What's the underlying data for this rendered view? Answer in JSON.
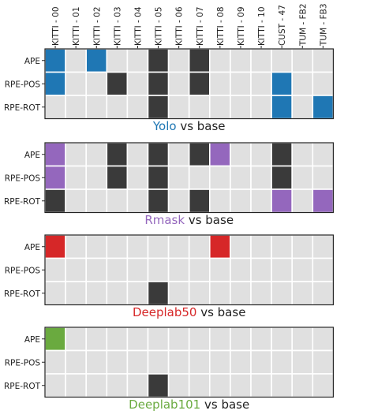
{
  "colors": {
    "empty": "#e0e0e0",
    "dark": "#3a3a3a",
    "blue": "#1f77b4",
    "purple": "#9467bd",
    "red": "#d62728",
    "green": "#6aaa3f",
    "frame": "#222222",
    "text": "#222222"
  },
  "chart_data": [
    {
      "type": "heatmap",
      "title": {
        "method": "Yolo",
        "method_color": "#1f77b4",
        "suffix": "vs base"
      },
      "columns": [
        "KITTI - 00",
        "KITTI - 01",
        "KITTI - 02",
        "KITTI - 03",
        "KITTI - 04",
        "KITTI - 05",
        "KITTI - 06",
        "KITTI - 07",
        "KITTI - 08",
        "KITTI - 09",
        "KITTI - 10",
        "CUST - 47",
        "TUM - FB2",
        "TUM - FB3"
      ],
      "rows": [
        "APE",
        "RPE-POS",
        "RPE-ROT"
      ],
      "row_labels_shown": [
        "APE",
        "RPE-POS",
        "RPE-ROT"
      ],
      "legend_meaning": {
        "0": "empty",
        "1": "method color",
        "2": "dark"
      },
      "cells": [
        [
          1,
          0,
          1,
          0,
          0,
          2,
          0,
          2,
          0,
          0,
          0,
          0,
          0,
          0
        ],
        [
          1,
          0,
          0,
          2,
          0,
          2,
          0,
          2,
          0,
          0,
          0,
          1,
          0,
          0
        ],
        [
          0,
          0,
          0,
          0,
          0,
          2,
          0,
          0,
          0,
          0,
          0,
          1,
          0,
          1
        ]
      ]
    },
    {
      "type": "heatmap",
      "title": {
        "method": "Rmask",
        "method_color": "#9467bd",
        "suffix": "vs base"
      },
      "columns": [
        "KITTI - 00",
        "KITTI - 01",
        "KITTI - 02",
        "KITTI - 03",
        "KITTI - 04",
        "KITTI - 05",
        "KITTI - 06",
        "KITTI - 07",
        "KITTI - 08",
        "KITTI - 09",
        "KITTI - 10",
        "CUST - 47",
        "TUM - FB2",
        "TUM - FB3"
      ],
      "rows": [
        "APE",
        "RPE-POS",
        "RPE-ROT"
      ],
      "row_labels_shown": [
        "APE",
        "RPE-POS",
        "RPE-ROT"
      ],
      "cells": [
        [
          1,
          0,
          0,
          2,
          0,
          2,
          0,
          2,
          1,
          0,
          0,
          2,
          0,
          0
        ],
        [
          1,
          0,
          0,
          2,
          0,
          2,
          0,
          0,
          0,
          0,
          0,
          2,
          0,
          0
        ],
        [
          2,
          0,
          0,
          0,
          0,
          2,
          0,
          2,
          0,
          0,
          0,
          1,
          0,
          1
        ]
      ]
    },
    {
      "type": "heatmap",
      "title": {
        "method": "Deeplab50",
        "method_color": "#d62728",
        "suffix": "vs base"
      },
      "columns": [
        "KITTI - 00",
        "KITTI - 01",
        "KITTI - 02",
        "KITTI - 03",
        "KITTI - 04",
        "KITTI - 05",
        "KITTI - 06",
        "KITTI - 07",
        "KITTI - 08",
        "KITTI - 09",
        "KITTI - 10",
        "CUST - 47",
        "TUM - FB2",
        "TUM - FB3"
      ],
      "rows": [
        "APE",
        "RPE-POS",
        "RPE-ROT"
      ],
      "row_labels_shown": [
        "APE",
        "RPE-POS",
        "RPE-ROT"
      ],
      "cells": [
        [
          1,
          0,
          0,
          0,
          0,
          0,
          0,
          0,
          1,
          0,
          0,
          0,
          0,
          0
        ],
        [
          0,
          0,
          0,
          0,
          0,
          0,
          0,
          0,
          0,
          0,
          0,
          0,
          0,
          0
        ],
        [
          0,
          0,
          0,
          0,
          0,
          2,
          0,
          0,
          0,
          0,
          0,
          0,
          0,
          0
        ]
      ]
    },
    {
      "type": "heatmap",
      "title": {
        "method": "Deeplab101",
        "method_color": "#6aaa3f",
        "suffix": "vs base"
      },
      "columns": [
        "KITTI - 00",
        "KITTI - 01",
        "KITTI - 02",
        "KITTI - 03",
        "KITTI - 04",
        "KITTI - 05",
        "KITTI - 06",
        "KITTI - 07",
        "KITTI - 08",
        "KITTI - 09",
        "KITTI - 10",
        "CUST - 47",
        "TUM - FB2",
        "TUM - FB3"
      ],
      "rows": [
        "APE",
        "RPE-POS",
        "RPE-ROT"
      ],
      "row_labels_shown": [
        "APE",
        "RPE-POS",
        "RPE-ROT"
      ],
      "cells": [
        [
          1,
          0,
          0,
          0,
          0,
          0,
          0,
          0,
          0,
          0,
          0,
          0,
          0,
          0
        ],
        [
          0,
          0,
          0,
          0,
          0,
          0,
          0,
          0,
          0,
          0,
          0,
          0,
          0,
          0
        ],
        [
          0,
          0,
          0,
          0,
          0,
          2,
          0,
          0,
          0,
          0,
          0,
          0,
          0,
          0
        ]
      ]
    }
  ]
}
